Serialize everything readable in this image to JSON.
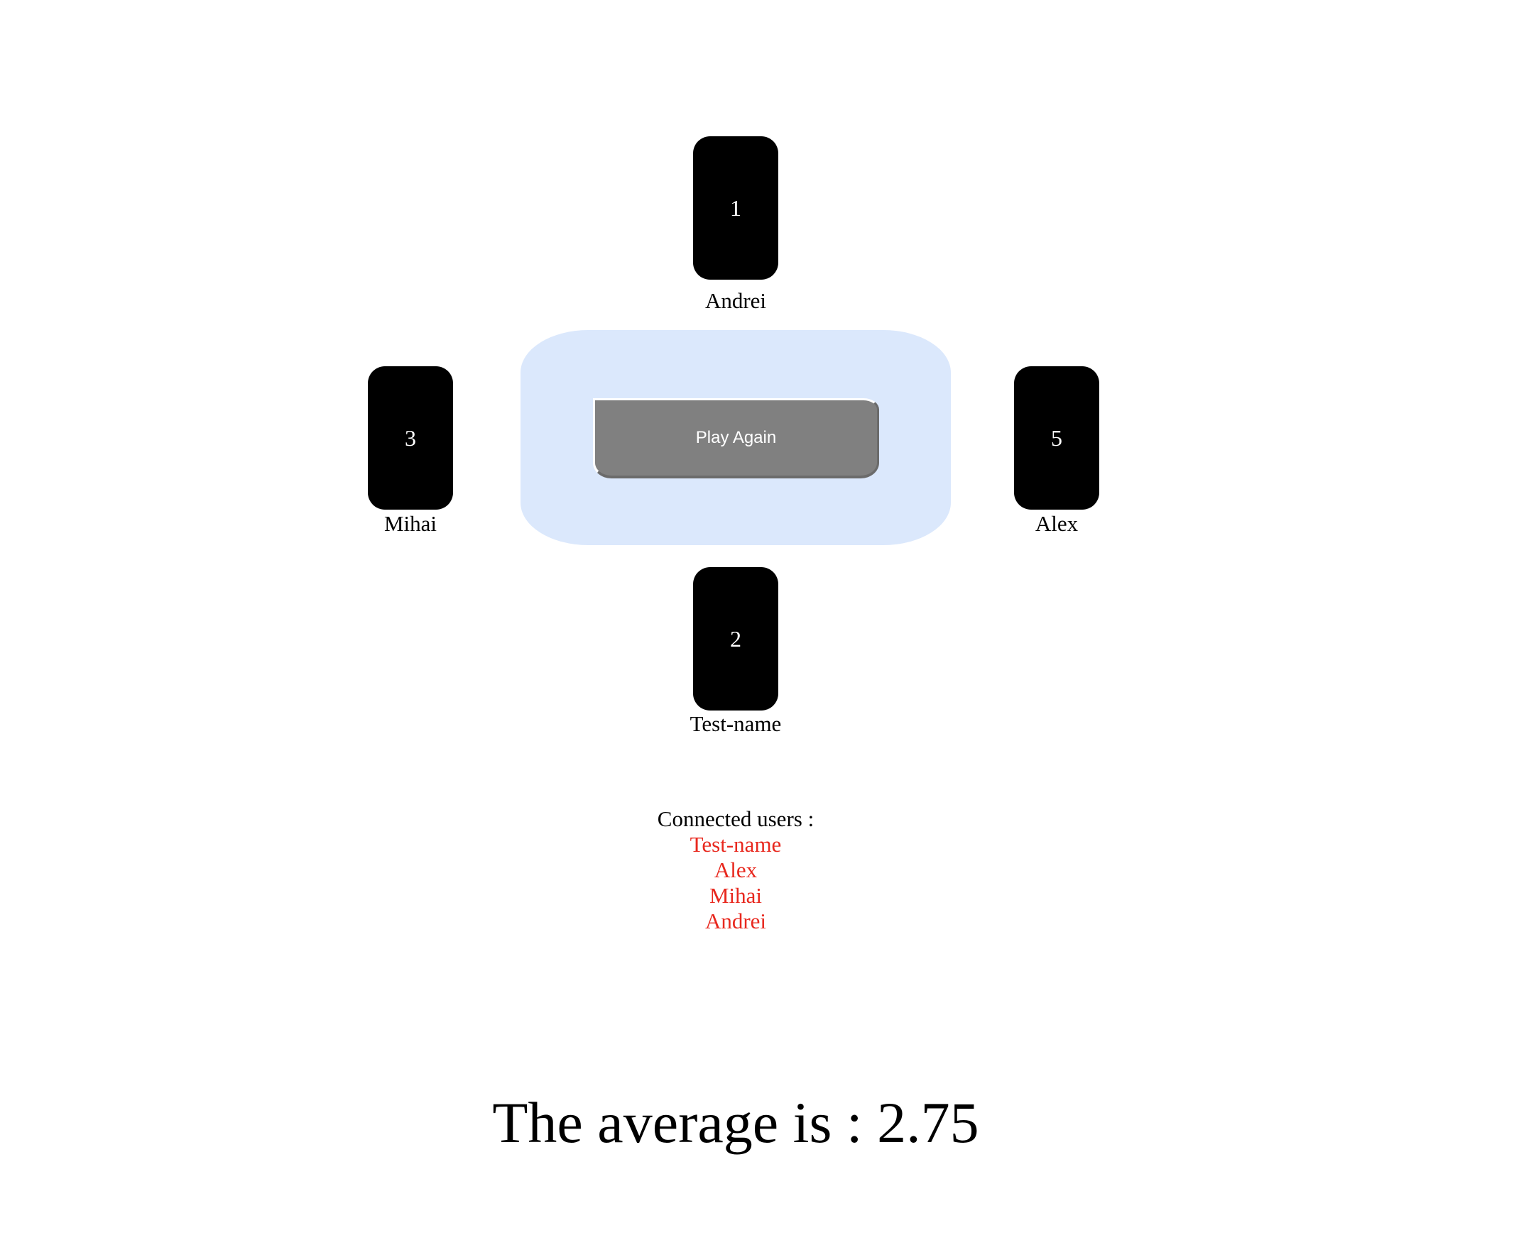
{
  "players": {
    "top": {
      "name": "Andrei",
      "card": "1"
    },
    "left": {
      "name": "Mihai",
      "card": "3"
    },
    "right": {
      "name": "Alex",
      "card": "5"
    },
    "bottom": {
      "name": "Test-name",
      "card": "2"
    }
  },
  "table": {
    "play_again_label": "Play Again",
    "color": "#dbe8fc"
  },
  "connected_users": {
    "label": "Connected users :",
    "items": [
      "Test-name",
      "Alex",
      "Mihai",
      "Andrei"
    ],
    "item_color": "#e8281e"
  },
  "result": {
    "average_text": "The average is : 2.75"
  }
}
